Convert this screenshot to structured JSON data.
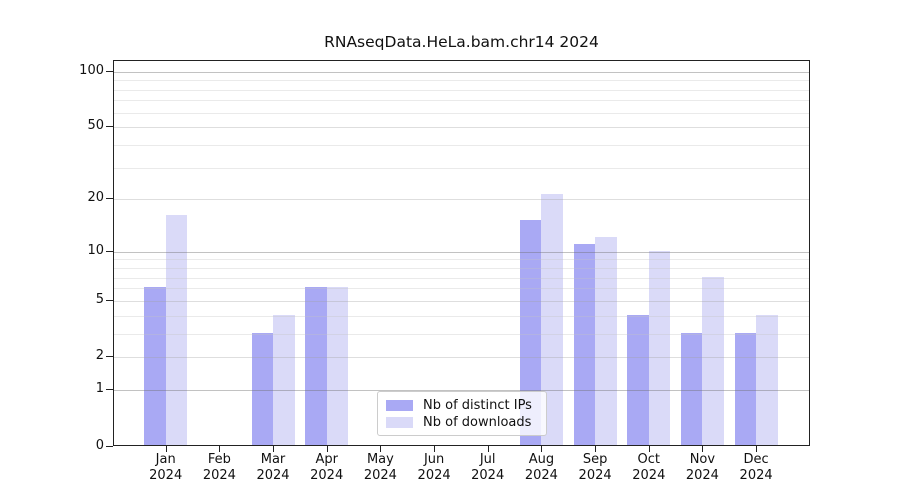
{
  "title": "RNAseqData.HeLa.bam.chr14 2024",
  "chart_data": {
    "type": "bar",
    "title": "RNAseqData.HeLa.bam.chr14 2024",
    "categories": [
      "Jan",
      "Feb",
      "Mar",
      "Apr",
      "May",
      "Jun",
      "Jul",
      "Aug",
      "Sep",
      "Oct",
      "Nov",
      "Dec"
    ],
    "year_label": "2024",
    "series": [
      {
        "name": "Nb of distinct IPs",
        "color": "#a9a9f4",
        "values": [
          6,
          0,
          3,
          6,
          0,
          0,
          0,
          15,
          11,
          4,
          3,
          3
        ]
      },
      {
        "name": "Nb of downloads",
        "color": "#dadaf8",
        "values": [
          16,
          0,
          4,
          6,
          0,
          0,
          0,
          21,
          12,
          10,
          7,
          4
        ]
      }
    ],
    "yscale": "log1p",
    "ylim": [
      0,
      114
    ],
    "y_tick_labels": [
      0,
      1,
      2,
      5,
      10,
      20,
      50,
      100
    ],
    "y_grid_major": [
      1,
      10,
      100
    ],
    "y_grid_sub": [
      2,
      5,
      20,
      50
    ],
    "y_grid_minor": [
      3,
      4,
      6,
      7,
      8,
      9,
      30,
      40,
      60,
      70,
      80,
      90
    ],
    "grid": true,
    "legend_position": "lower center",
    "grid_colors": {
      "major": "rgba(110,110,110,0.42)",
      "sub": "rgba(160,160,160,0.35)",
      "minor": "rgba(195,195,195,0.35)"
    }
  }
}
